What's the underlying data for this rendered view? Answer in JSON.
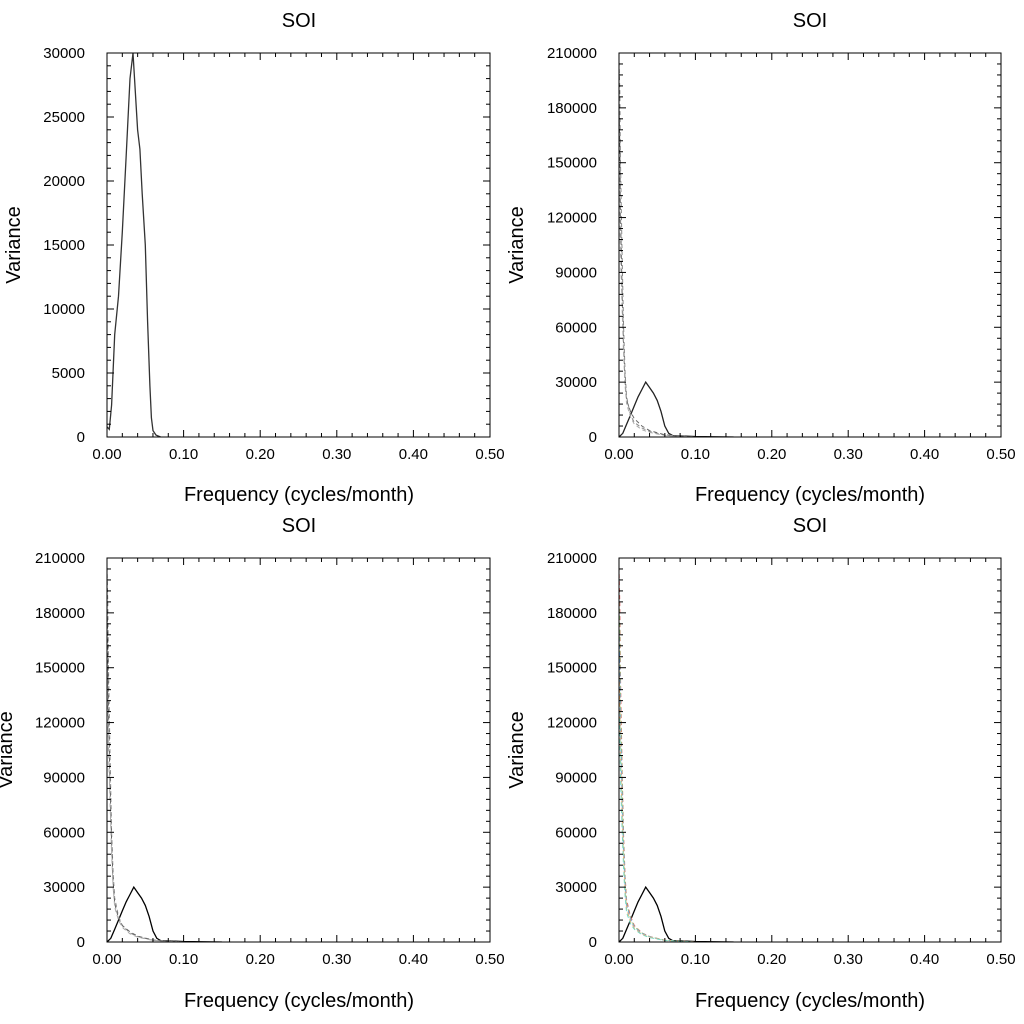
{
  "chart_data": [
    {
      "type": "line",
      "title": "SOI",
      "xlabel": "Frequency (cycles/month)",
      "ylabel": "Variance",
      "xlim": [
        0,
        0.5
      ],
      "ylim": [
        0,
        30000
      ],
      "x_ticks": [
        "0.00",
        "0.10",
        "0.20",
        "0.30",
        "0.40",
        "0.50"
      ],
      "y_ticks": [
        "0",
        "5000",
        "10000",
        "15000",
        "20000",
        "25000",
        "30000"
      ],
      "series": [
        {
          "color": "#333333",
          "style": "solid",
          "x": [
            0.0,
            0.003,
            0.006,
            0.01,
            0.015,
            0.02,
            0.025,
            0.03,
            0.034,
            0.037,
            0.04,
            0.043,
            0.046,
            0.05,
            0.053,
            0.056,
            0.058,
            0.06,
            0.064,
            0.07
          ],
          "y": [
            800,
            600,
            2500,
            8000,
            11000,
            16000,
            22000,
            28000,
            30000,
            27000,
            24000,
            22500,
            19000,
            15000,
            9000,
            4000,
            1500,
            500,
            150,
            0
          ]
        }
      ]
    },
    {
      "type": "line",
      "title": "SOI",
      "xlabel": "Frequency (cycles/month)",
      "ylabel": "Variance",
      "xlim": [
        0,
        0.5
      ],
      "ylim": [
        0,
        210000
      ],
      "x_ticks": [
        "0.00",
        "0.10",
        "0.20",
        "0.30",
        "0.40",
        "0.50"
      ],
      "y_ticks": [
        "0",
        "30000",
        "60000",
        "90000",
        "120000",
        "150000",
        "180000",
        "210000"
      ],
      "series": [
        {
          "color": "#222222",
          "style": "solid",
          "x": [
            0.0,
            0.005,
            0.01,
            0.015,
            0.02,
            0.025,
            0.03,
            0.035,
            0.04,
            0.045,
            0.05,
            0.055,
            0.06,
            0.065,
            0.07,
            0.1,
            0.15
          ],
          "y": [
            0,
            2000,
            7000,
            12000,
            17000,
            22000,
            26000,
            30000,
            27000,
            24000,
            20000,
            14000,
            6000,
            2000,
            800,
            300,
            0
          ]
        },
        {
          "color": "#888888",
          "style": "dashed",
          "x": [
            0.0,
            0.001,
            0.002,
            0.004,
            0.006,
            0.008,
            0.01,
            0.015,
            0.02,
            0.03,
            0.04,
            0.06,
            0.1
          ],
          "y": [
            205000,
            190000,
            150000,
            100000,
            60000,
            35000,
            22000,
            12000,
            8000,
            5000,
            3000,
            1000,
            0
          ]
        },
        {
          "color": "#666666",
          "style": "dashed",
          "x": [
            0.0,
            0.001,
            0.002,
            0.004,
            0.006,
            0.008,
            0.01,
            0.015,
            0.02,
            0.03,
            0.04,
            0.06,
            0.1
          ],
          "y": [
            180000,
            160000,
            120000,
            80000,
            50000,
            30000,
            20000,
            14000,
            10000,
            6000,
            3500,
            1200,
            0
          ]
        },
        {
          "color": "#aaaaaa",
          "style": "dashed",
          "x": [
            0.0,
            0.001,
            0.002,
            0.004,
            0.006,
            0.008,
            0.01,
            0.015,
            0.02,
            0.03,
            0.04,
            0.06,
            0.1
          ],
          "y": [
            150000,
            130000,
            100000,
            70000,
            45000,
            28000,
            18000,
            11000,
            7000,
            4000,
            2500,
            800,
            0
          ]
        }
      ]
    },
    {
      "type": "line",
      "title": "SOI",
      "xlabel": "Frequency (cycles/month)",
      "ylabel": "Variance",
      "xlim": [
        0,
        0.5
      ],
      "ylim": [
        0,
        210000
      ],
      "x_ticks": [
        "0.00",
        "0.10",
        "0.20",
        "0.30",
        "0.40",
        "0.50"
      ],
      "y_ticks": [
        "0",
        "30000",
        "60000",
        "90000",
        "120000",
        "150000",
        "180000",
        "210000"
      ],
      "series": [
        {
          "color": "#000000",
          "style": "solid",
          "x": [
            0.0,
            0.005,
            0.01,
            0.015,
            0.02,
            0.025,
            0.03,
            0.035,
            0.04,
            0.045,
            0.05,
            0.055,
            0.06,
            0.065,
            0.07,
            0.1,
            0.15
          ],
          "y": [
            0,
            2000,
            7000,
            12000,
            17000,
            22000,
            26000,
            30000,
            27000,
            24000,
            20000,
            14000,
            6000,
            2000,
            800,
            300,
            0
          ]
        },
        {
          "color": "#888888",
          "style": "dashed",
          "x": [
            0.0,
            0.001,
            0.002,
            0.004,
            0.006,
            0.008,
            0.01,
            0.015,
            0.02,
            0.03,
            0.04,
            0.06,
            0.1
          ],
          "y": [
            205000,
            185000,
            150000,
            100000,
            60000,
            38000,
            24000,
            14000,
            9000,
            5000,
            3000,
            1000,
            0
          ]
        },
        {
          "color": "#666666",
          "style": "dashed",
          "x": [
            0.0,
            0.001,
            0.002,
            0.004,
            0.006,
            0.008,
            0.01,
            0.015,
            0.02,
            0.03,
            0.04,
            0.06,
            0.1
          ],
          "y": [
            185000,
            165000,
            125000,
            85000,
            55000,
            33000,
            21000,
            13000,
            9000,
            5500,
            3200,
            1100,
            0
          ]
        },
        {
          "color": "#aaaaaa",
          "style": "dashed",
          "x": [
            0.0,
            0.001,
            0.002,
            0.004,
            0.006,
            0.008,
            0.01,
            0.015,
            0.02,
            0.03,
            0.04,
            0.06,
            0.1
          ],
          "y": [
            160000,
            140000,
            105000,
            75000,
            48000,
            30000,
            19000,
            12000,
            8000,
            4500,
            2700,
            900,
            0
          ]
        }
      ]
    },
    {
      "type": "line",
      "title": "SOI",
      "xlabel": "Frequency (cycles/month)",
      "ylabel": "Variance",
      "xlim": [
        0,
        0.5
      ],
      "ylim": [
        0,
        210000
      ],
      "x_ticks": [
        "0.00",
        "0.10",
        "0.20",
        "0.30",
        "0.40",
        "0.50"
      ],
      "y_ticks": [
        "0",
        "30000",
        "60000",
        "90000",
        "120000",
        "150000",
        "180000",
        "210000"
      ],
      "series": [
        {
          "color": "#000000",
          "style": "solid",
          "x": [
            0.0,
            0.005,
            0.01,
            0.015,
            0.02,
            0.025,
            0.03,
            0.035,
            0.04,
            0.045,
            0.05,
            0.055,
            0.06,
            0.065,
            0.07,
            0.1,
            0.15
          ],
          "y": [
            0,
            2000,
            7000,
            12000,
            17000,
            22000,
            26000,
            30000,
            27000,
            24000,
            20000,
            14000,
            6000,
            2000,
            800,
            300,
            0
          ]
        },
        {
          "color": "#e06666",
          "style": "dashed",
          "x": [
            0.0,
            0.001,
            0.002,
            0.004,
            0.006,
            0.008,
            0.01,
            0.015,
            0.02,
            0.03,
            0.04,
            0.06,
            0.1
          ],
          "y": [
            205000,
            185000,
            145000,
            95000,
            58000,
            36000,
            23000,
            14000,
            9000,
            5000,
            3000,
            1000,
            0
          ]
        },
        {
          "color": "#93c47d",
          "style": "dashed",
          "x": [
            0.0,
            0.001,
            0.002,
            0.004,
            0.006,
            0.008,
            0.01,
            0.015,
            0.02,
            0.03,
            0.04,
            0.06,
            0.1
          ],
          "y": [
            190000,
            170000,
            130000,
            88000,
            54000,
            33000,
            21000,
            13000,
            8500,
            5000,
            2900,
            1000,
            0
          ]
        },
        {
          "color": "#6fa8dc",
          "style": "dashed",
          "x": [
            0.0,
            0.001,
            0.002,
            0.004,
            0.006,
            0.008,
            0.01,
            0.015,
            0.02,
            0.03,
            0.04,
            0.06,
            0.1
          ],
          "y": [
            170000,
            150000,
            115000,
            78000,
            50000,
            31000,
            20000,
            12500,
            8000,
            4700,
            2800,
            900,
            0
          ]
        },
        {
          "color": "#f6b26b",
          "style": "dashed",
          "x": [
            0.0,
            0.001,
            0.002,
            0.004,
            0.006,
            0.008,
            0.01,
            0.015,
            0.02,
            0.03,
            0.04,
            0.06,
            0.1
          ],
          "y": [
            150000,
            130000,
            100000,
            70000,
            45000,
            28000,
            18000,
            11000,
            7500,
            4300,
            2600,
            850,
            0
          ]
        },
        {
          "color": "#76d7c4",
          "style": "dashed",
          "x": [
            0.0,
            0.001,
            0.002,
            0.004,
            0.006,
            0.008,
            0.01,
            0.015,
            0.02,
            0.03,
            0.04,
            0.06,
            0.1
          ],
          "y": [
            130000,
            115000,
            90000,
            62000,
            40000,
            25000,
            16000,
            10000,
            7000,
            4000,
            2400,
            800,
            0
          ]
        }
      ]
    }
  ]
}
